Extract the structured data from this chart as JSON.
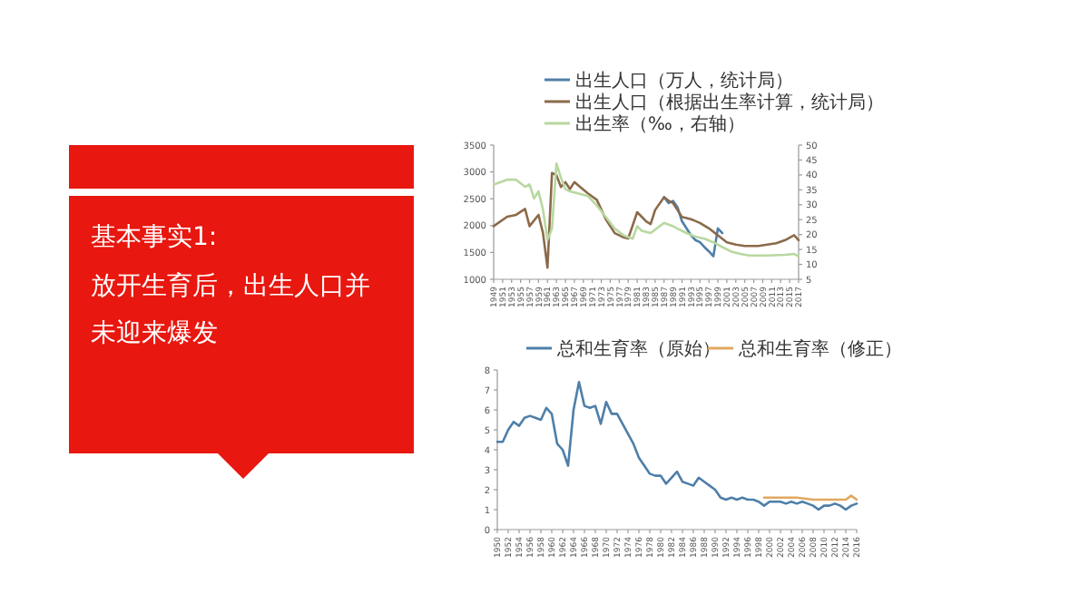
{
  "chart_data": [
    {
      "type": "other",
      "title": "基本事实1:",
      "subtitle": "放开生育后，出生人口并未迎来爆发"
    },
    {
      "type": "line",
      "legend": "top",
      "xlim": [
        1949,
        2017
      ],
      "xticks": [
        1949,
        1951,
        1953,
        1955,
        1957,
        1959,
        1961,
        1963,
        1965,
        1967,
        1969,
        1971,
        1973,
        1975,
        1977,
        1979,
        1981,
        1983,
        1985,
        1987,
        1989,
        1991,
        1993,
        1995,
        1997,
        1999,
        2001,
        2003,
        2005,
        2007,
        2009,
        2011,
        2013,
        2015,
        2017
      ],
      "ylim": [
        1000,
        3500
      ],
      "yticks": [
        1000,
        1500,
        2000,
        2500,
        3000,
        3500
      ],
      "y2lim": [
        5,
        50
      ],
      "y2ticks": [
        5,
        10,
        15,
        20,
        25,
        30,
        35,
        40,
        45,
        50
      ],
      "series": [
        {
          "name": "出生人口（万人，统计局）",
          "color": "#4e7fa8",
          "x": [
            1987,
            1988,
            1989,
            1990,
            1991,
            1992,
            1993,
            1994,
            1995,
            1996,
            1997,
            1998,
            1999,
            2000
          ],
          "values": [
            2530,
            2420,
            2460,
            2340,
            2080,
            1950,
            1820,
            1730,
            1690,
            1600,
            1520,
            1430,
            1950,
            1860
          ]
        },
        {
          "name": "出生人口（根据出生率计算，统计局）",
          "color": "#8b6a4a",
          "x": [
            1949,
            1952,
            1954,
            1956,
            1957,
            1959,
            1960,
            1961,
            1962,
            1963,
            1964,
            1965,
            1966,
            1967,
            1968,
            1970,
            1972,
            1974,
            1976,
            1978,
            1979,
            1981,
            1982,
            1983,
            1984,
            1985,
            1987,
            1988,
            1989,
            1990,
            1991,
            1993,
            1995,
            1997,
            1999,
            2001,
            2003,
            2005,
            2008,
            2010,
            2012,
            2014,
            2016,
            2017
          ],
          "values": [
            1990,
            2165,
            2200,
            2310,
            1990,
            2200,
            1860,
            1215,
            2980,
            2940,
            2720,
            2810,
            2680,
            2810,
            2740,
            2600,
            2480,
            2120,
            1860,
            1780,
            1760,
            2250,
            2165,
            2080,
            2030,
            2290,
            2530,
            2465,
            2420,
            2290,
            2160,
            2120,
            2050,
            1950,
            1820,
            1690,
            1645,
            1620,
            1620,
            1645,
            1670,
            1730,
            1820,
            1730
          ]
        },
        {
          "name": "出生率（‰，右轴）",
          "color": "#b8d8a0",
          "axis": "y2",
          "x": [
            1949,
            1952,
            1954,
            1956,
            1957,
            1958,
            1959,
            1960,
            1961,
            1962,
            1963,
            1964,
            1965,
            1966,
            1968,
            1970,
            1972,
            1974,
            1976,
            1978,
            1980,
            1981,
            1982,
            1984,
            1986,
            1987,
            1989,
            1990,
            1992,
            1994,
            1996,
            1998,
            2000,
            2002,
            2004,
            2006,
            2010,
            2014,
            2016,
            2017
          ],
          "values": [
            36.8,
            38.4,
            38.4,
            36,
            36.8,
            32.1,
            34.5,
            28.3,
            18.2,
            22,
            43.8,
            39.1,
            35.2,
            34.5,
            33.7,
            32.9,
            29.8,
            25.9,
            22,
            19.7,
            18.6,
            22.8,
            21.3,
            20.5,
            22.8,
            23.9,
            22.8,
            22,
            20.5,
            19.3,
            18.6,
            17.4,
            15.8,
            14.3,
            13.5,
            13,
            13,
            13.2,
            13.5,
            12.7
          ]
        }
      ]
    },
    {
      "type": "line",
      "legend": "top",
      "xlim": [
        1950,
        2016
      ],
      "xticks": [
        1950,
        1952,
        1954,
        1956,
        1958,
        1960,
        1962,
        1964,
        1966,
        1968,
        1970,
        1972,
        1974,
        1976,
        1978,
        1980,
        1982,
        1984,
        1986,
        1988,
        1990,
        1992,
        1994,
        1996,
        1998,
        2000,
        2002,
        2004,
        2006,
        2008,
        2010,
        2012,
        2014,
        2016
      ],
      "ylim": [
        0,
        8
      ],
      "yticks": [
        0,
        1,
        2,
        3,
        4,
        5,
        6,
        7,
        8
      ],
      "series": [
        {
          "name": "总和生育率（原始）",
          "color": "#4e7fa8",
          "x": [
            1950,
            1951,
            1952,
            1953,
            1954,
            1955,
            1956,
            1957,
            1958,
            1959,
            1960,
            1961,
            1962,
            1963,
            1964,
            1965,
            1966,
            1967,
            1968,
            1969,
            1970,
            1971,
            1972,
            1973,
            1974,
            1975,
            1976,
            1977,
            1978,
            1979,
            1980,
            1981,
            1982,
            1983,
            1984,
            1985,
            1986,
            1987,
            1988,
            1989,
            1990,
            1991,
            1992,
            1993,
            1994,
            1995,
            1996,
            1997,
            1998,
            1999,
            2000,
            2001,
            2002,
            2003,
            2004,
            2005,
            2006,
            2007,
            2008,
            2009,
            2010,
            2011,
            2012,
            2013,
            2014,
            2015,
            2016
          ],
          "values": [
            4.4,
            4.4,
            5,
            5.4,
            5.2,
            5.6,
            5.7,
            5.6,
            5.5,
            6.1,
            5.8,
            4.3,
            4,
            3.2,
            6,
            7.4,
            6.2,
            6.1,
            6.2,
            5.3,
            6.4,
            5.8,
            5.8,
            5.3,
            4.8,
            4.3,
            3.6,
            3.2,
            2.8,
            2.7,
            2.7,
            2.3,
            2.6,
            2.9,
            2.4,
            2.3,
            2.2,
            2.6,
            2.4,
            2.2,
            2,
            1.6,
            1.5,
            1.6,
            1.5,
            1.6,
            1.5,
            1.5,
            1.4,
            1.2,
            1.4,
            1.4,
            1.4,
            1.3,
            1.4,
            1.3,
            1.4,
            1.3,
            1.2,
            1,
            1.2,
            1.2,
            1.3,
            1.2,
            1,
            1.2,
            1.3
          ]
        },
        {
          "name": "总和生育率（修正）",
          "color": "#e0a860",
          "x": [
            1999,
            2002,
            2005,
            2008,
            2011,
            2014,
            2015,
            2016
          ],
          "values": [
            1.6,
            1.6,
            1.6,
            1.5,
            1.5,
            1.5,
            1.7,
            1.5
          ]
        }
      ]
    }
  ]
}
